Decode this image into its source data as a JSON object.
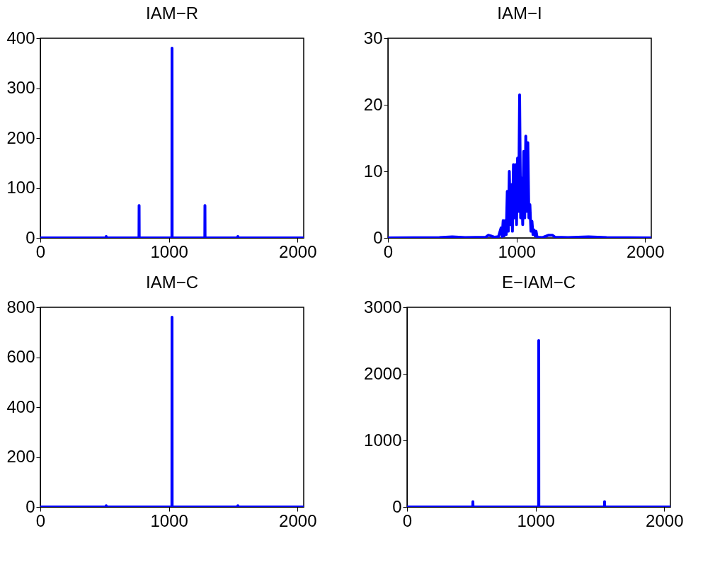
{
  "chart_data": [
    {
      "type": "line",
      "title": "IAM−R",
      "x": [
        0,
        511,
        512,
        513,
        767,
        768,
        769,
        1023,
        1024,
        1025,
        1279,
        1280,
        1281,
        1535,
        1536,
        1537,
        2048
      ],
      "values": [
        0,
        0,
        3,
        0,
        0,
        65,
        0,
        0,
        380,
        0,
        0,
        65,
        0,
        0,
        3,
        0,
        0
      ],
      "color": "#0000ff",
      "xlim": [
        0,
        2048
      ],
      "xticks": [
        0,
        1000,
        2000
      ],
      "ylim": [
        0,
        400
      ],
      "yticks": [
        0,
        100,
        200,
        300,
        400
      ],
      "grid": false
    },
    {
      "type": "line",
      "title": "IAM−I",
      "x": [
        0,
        400,
        500,
        600,
        760,
        780,
        800,
        830,
        860,
        880,
        888,
        896,
        904,
        912,
        920,
        928,
        936,
        944,
        952,
        960,
        968,
        976,
        984,
        992,
        1000,
        1008,
        1016,
        1024,
        1032,
        1040,
        1048,
        1056,
        1064,
        1072,
        1080,
        1088,
        1096,
        1104,
        1112,
        1120,
        1128,
        1136,
        1144,
        1152,
        1160,
        1200,
        1250,
        1280,
        1300,
        1400,
        1560,
        1700,
        2048
      ],
      "values": [
        0,
        0.05,
        0.15,
        0.05,
        0.1,
        0.4,
        0.3,
        0.1,
        0.2,
        1.5,
        0.2,
        2.6,
        0.3,
        2.6,
        0.5,
        7,
        1,
        10,
        2,
        8,
        1,
        11,
        3,
        11,
        2,
        12,
        4,
        21.5,
        3,
        9,
        2,
        13,
        3,
        15.3,
        4,
        14.3,
        3,
        5,
        1,
        2.5,
        0.5,
        1.2,
        0.3,
        1,
        0.1,
        0.05,
        0.4,
        0.4,
        0.1,
        0.05,
        0.15,
        0.05,
        0
      ],
      "color": "#0000ff",
      "xlim": [
        0,
        2048
      ],
      "xticks": [
        0,
        1000,
        2000
      ],
      "ylim": [
        0,
        30
      ],
      "yticks": [
        0,
        10,
        20,
        30
      ],
      "grid": false
    },
    {
      "type": "line",
      "title": "IAM−C",
      "x": [
        0,
        511,
        512,
        513,
        1023,
        1024,
        1025,
        1535,
        1536,
        1537,
        2048
      ],
      "values": [
        0,
        0,
        5,
        0,
        0,
        760,
        0,
        0,
        5,
        0,
        0
      ],
      "color": "#0000ff",
      "xlim": [
        0,
        2048
      ],
      "xticks": [
        0,
        1000,
        2000
      ],
      "ylim": [
        0,
        800
      ],
      "yticks": [
        0,
        200,
        400,
        600,
        800
      ],
      "grid": false
    },
    {
      "type": "line",
      "title": "E−IAM−C",
      "x": [
        0,
        511,
        512,
        513,
        1023,
        1024,
        1025,
        1535,
        1536,
        1537,
        2048
      ],
      "values": [
        0,
        0,
        80,
        0,
        0,
        2500,
        0,
        0,
        80,
        0,
        0
      ],
      "color": "#0000ff",
      "xlim": [
        0,
        2048
      ],
      "xticks": [
        0,
        1000,
        2000
      ],
      "ylim": [
        0,
        3000
      ],
      "yticks": [
        0,
        1000,
        2000,
        3000
      ],
      "grid": false
    }
  ]
}
